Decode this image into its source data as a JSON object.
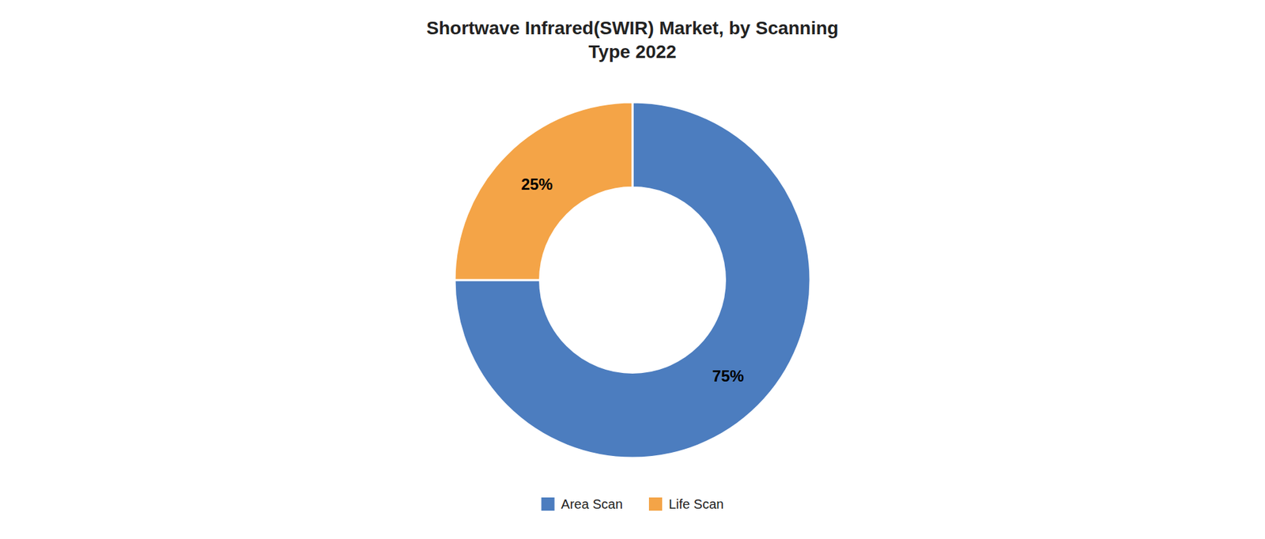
{
  "chart_data": {
    "type": "donut",
    "title": "Shortwave Infrared(SWIR) Market, by Scanning\nType 2022",
    "categories": [
      "Area Scan",
      "Life Scan"
    ],
    "values": [
      75,
      25
    ],
    "value_labels": [
      "75%",
      "25%"
    ],
    "colors": [
      "#4C7DBF",
      "#F4A447"
    ],
    "data_labels": true,
    "legend": "bottom"
  }
}
